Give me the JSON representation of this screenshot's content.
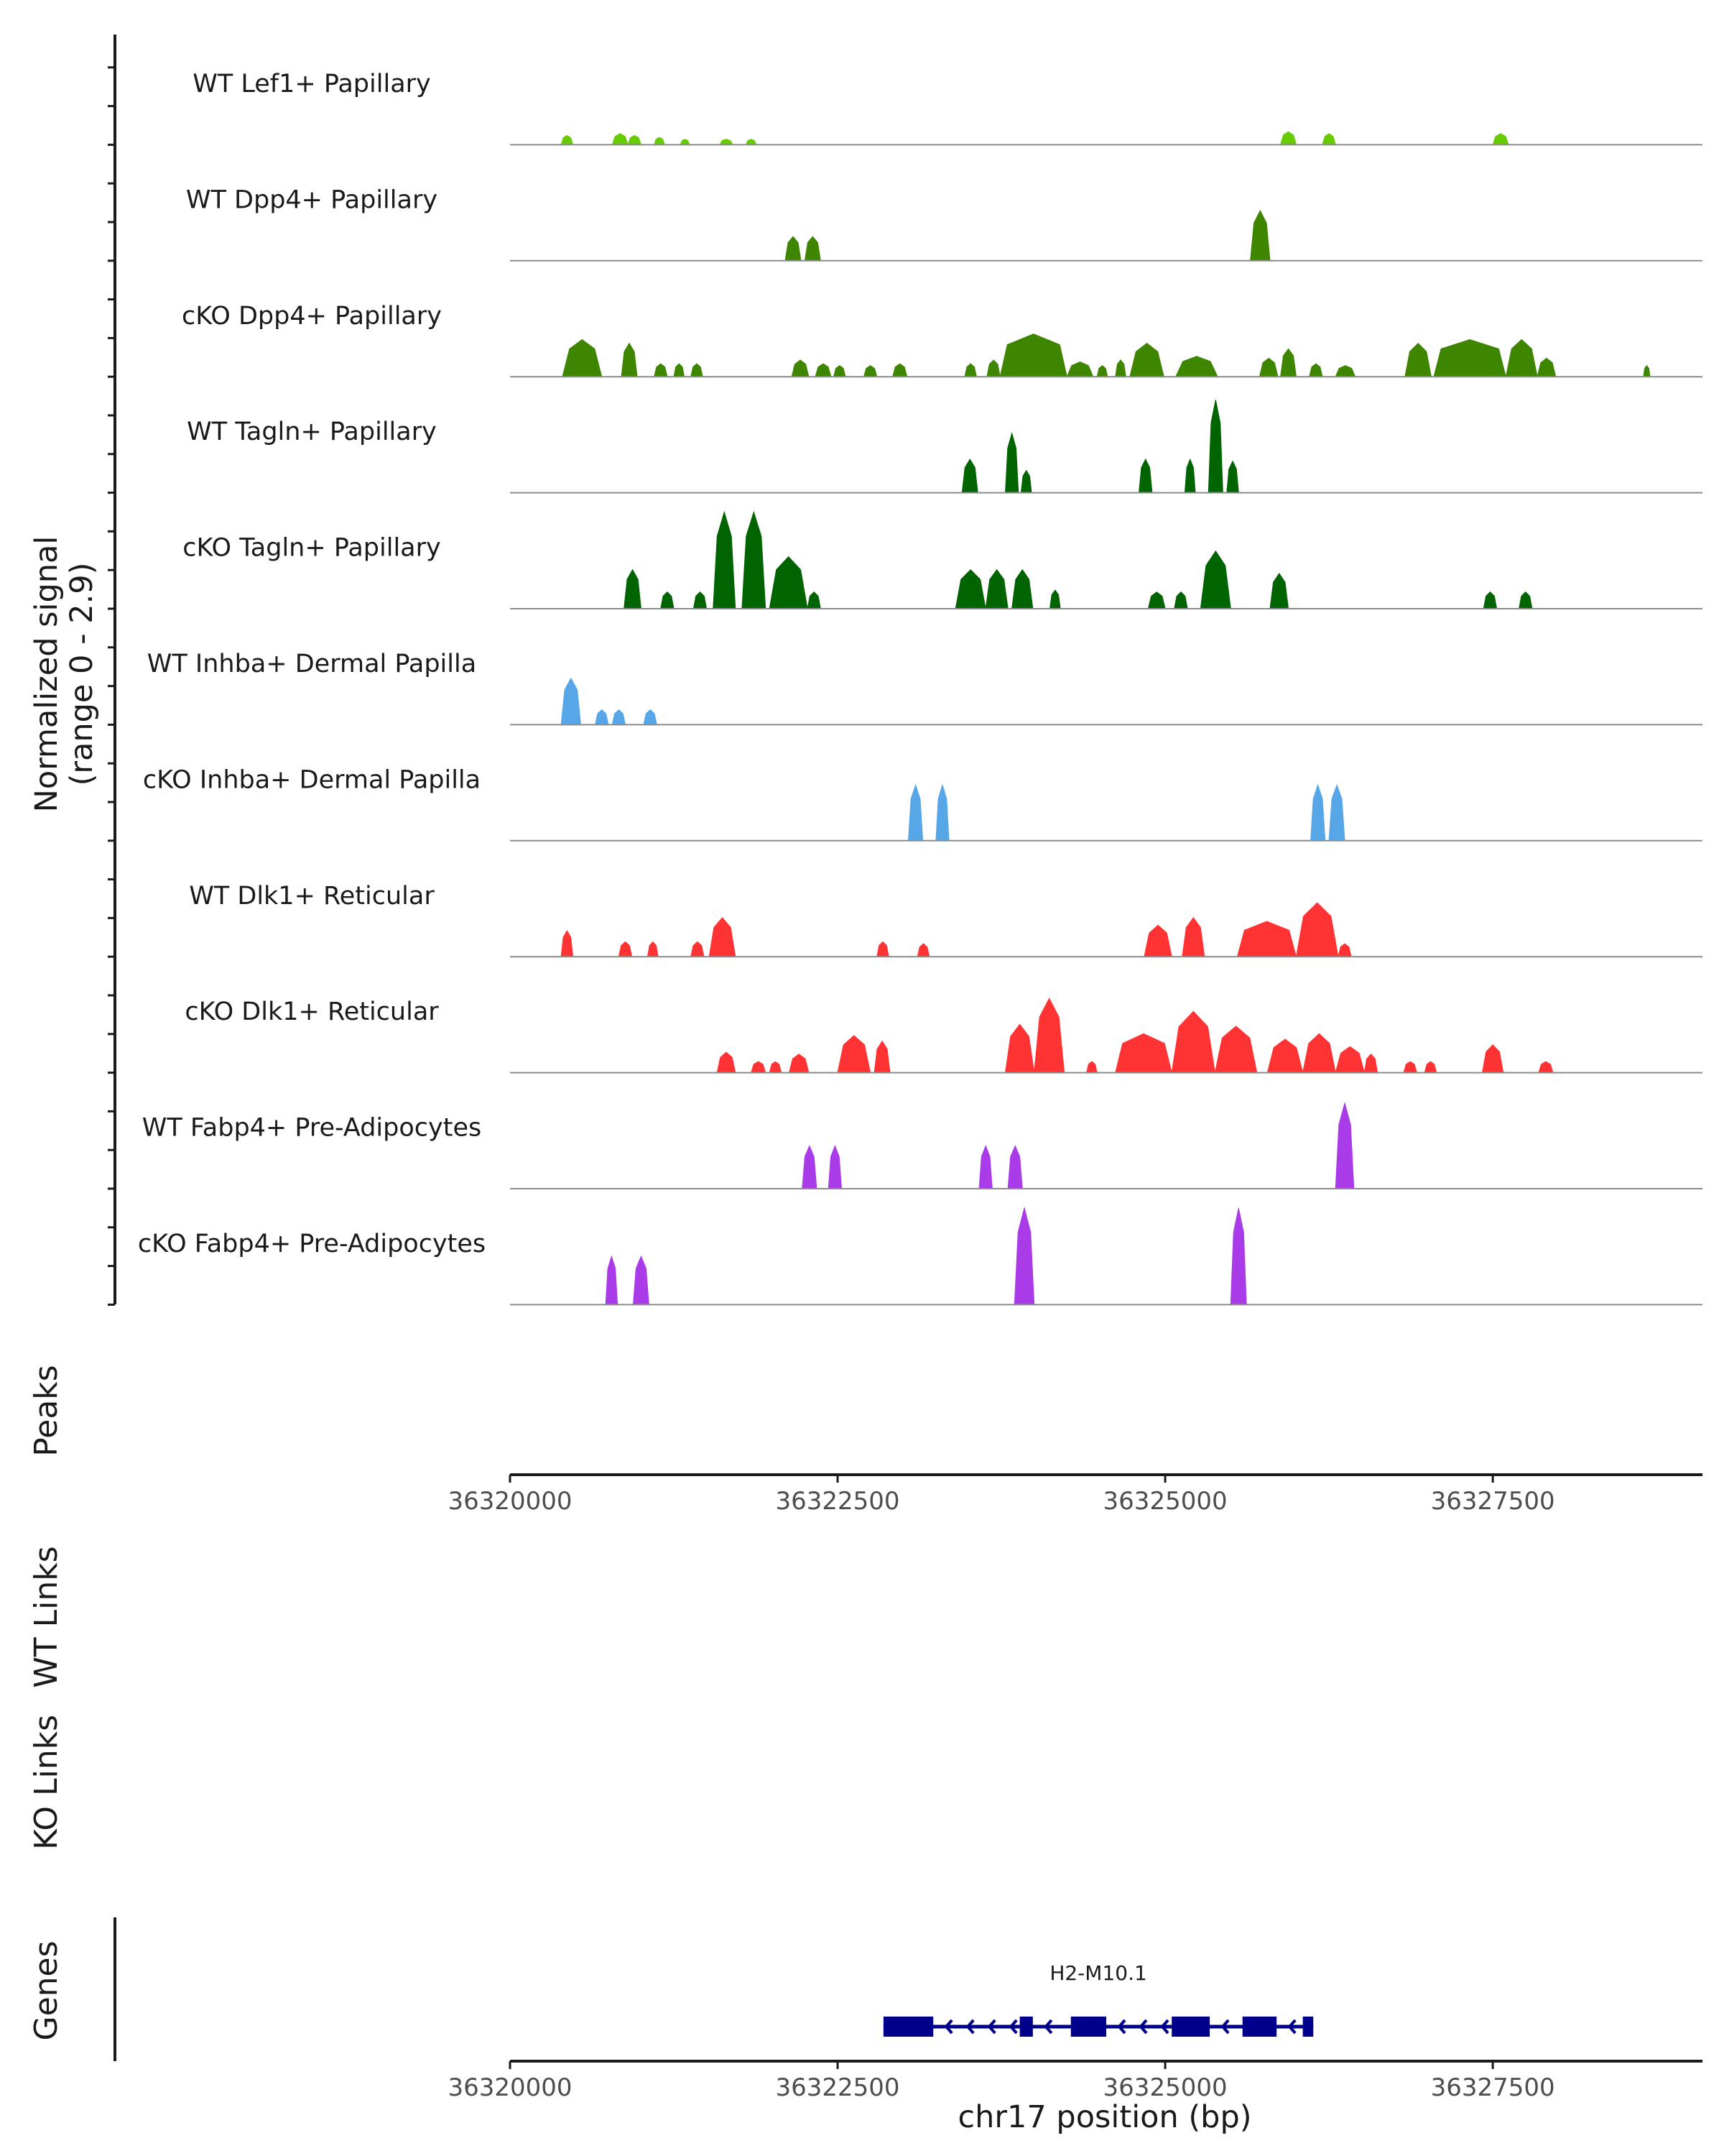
{
  "chart_data": {
    "type": "area",
    "title": "",
    "ylabel": "Normalized signal",
    "ylabel_range": "(range 0 - 2.9)",
    "ylim": [
      0,
      2.9
    ],
    "xlabel": "chr17 position (bp)",
    "chromosome": "chr17",
    "xlim": [
      36320000,
      36329100
    ],
    "x_ticks": [
      36320000,
      36322500,
      36325000,
      36327500
    ],
    "x_tick_labels": [
      "36320000",
      "36322500",
      "36325000",
      "36327500"
    ],
    "series": [
      {
        "name": "WT Lef1+ Papillary",
        "color": "#66CC00",
        "peaks": [
          [
            36320390,
            36320480,
            0.25
          ],
          [
            36320780,
            36320900,
            0.3
          ],
          [
            36320900,
            36321000,
            0.25
          ],
          [
            36321100,
            36321180,
            0.2
          ],
          [
            36321300,
            36321370,
            0.15
          ],
          [
            36321600,
            36321700,
            0.15
          ],
          [
            36321800,
            36321880,
            0.15
          ],
          [
            36325880,
            36326000,
            0.35
          ],
          [
            36326200,
            36326300,
            0.3
          ],
          [
            36327500,
            36327620,
            0.3
          ]
        ]
      },
      {
        "name": "WT Dpp4+ Papillary",
        "color": "#3E8500",
        "peaks": [
          [
            36322100,
            36322220,
            0.65
          ],
          [
            36322250,
            36322370,
            0.65
          ],
          [
            36325650,
            36325800,
            1.35
          ]
        ]
      },
      {
        "name": "cKO Dpp4+ Papillary",
        "color": "#3E8500",
        "peaks": [
          [
            36320400,
            36320700,
            1.0
          ],
          [
            36320850,
            36320970,
            0.9
          ],
          [
            36321100,
            36321200,
            0.35
          ],
          [
            36321250,
            36321330,
            0.35
          ],
          [
            36321380,
            36321470,
            0.35
          ],
          [
            36322150,
            36322280,
            0.45
          ],
          [
            36322330,
            36322450,
            0.35
          ],
          [
            36322470,
            36322560,
            0.3
          ],
          [
            36322700,
            36322800,
            0.3
          ],
          [
            36322920,
            36323030,
            0.35
          ],
          [
            36323470,
            36323560,
            0.35
          ],
          [
            36323640,
            36323740,
            0.45
          ],
          [
            36323740,
            36324250,
            1.15
          ],
          [
            36324250,
            36324450,
            0.4
          ],
          [
            36324480,
            36324560,
            0.3
          ],
          [
            36324620,
            36324700,
            0.45
          ],
          [
            36324730,
            36324990,
            0.9
          ],
          [
            36325080,
            36325400,
            0.55
          ],
          [
            36325720,
            36325860,
            0.5
          ],
          [
            36325880,
            36326000,
            0.75
          ],
          [
            36326100,
            36326200,
            0.35
          ],
          [
            36326300,
            36326450,
            0.3
          ],
          [
            36326830,
            36327030,
            0.9
          ],
          [
            36327050,
            36327600,
            1.0
          ],
          [
            36327600,
            36327840,
            1.0
          ],
          [
            36327840,
            36327980,
            0.5
          ],
          [
            36328650,
            36328700,
            0.3
          ]
        ]
      },
      {
        "name": "WT Tagln+ Papillary",
        "color": "#006400",
        "peaks": [
          [
            36323450,
            36323570,
            0.9
          ],
          [
            36323780,
            36323880,
            1.6
          ],
          [
            36323900,
            36323980,
            0.6
          ],
          [
            36324800,
            36324900,
            0.9
          ],
          [
            36325150,
            36325230,
            0.9
          ],
          [
            36325330,
            36325440,
            2.5
          ],
          [
            36325470,
            36325560,
            0.85
          ]
        ]
      },
      {
        "name": "cKO Tagln+ Papillary",
        "color": "#006400",
        "peaks": [
          [
            36320870,
            36321000,
            1.05
          ],
          [
            36321150,
            36321250,
            0.45
          ],
          [
            36321400,
            36321500,
            0.45
          ],
          [
            36321550,
            36321720,
            2.6
          ],
          [
            36321770,
            36321950,
            2.6
          ],
          [
            36321980,
            36322270,
            1.4
          ],
          [
            36322270,
            36322370,
            0.45
          ],
          [
            36323400,
            36323630,
            1.05
          ],
          [
            36323630,
            36323800,
            1.05
          ],
          [
            36323830,
            36323990,
            1.05
          ],
          [
            36324120,
            36324200,
            0.5
          ],
          [
            36324870,
            36325000,
            0.45
          ],
          [
            36325070,
            36325170,
            0.45
          ],
          [
            36325270,
            36325500,
            1.55
          ],
          [
            36325800,
            36325940,
            0.95
          ],
          [
            36327430,
            36327530,
            0.45
          ],
          [
            36327700,
            36327800,
            0.45
          ]
        ]
      },
      {
        "name": "WT Inhba+ Dermal Papilla",
        "color": "#56A6E8",
        "peaks": [
          [
            36320390,
            36320540,
            1.25
          ],
          [
            36320650,
            36320750,
            0.4
          ],
          [
            36320780,
            36320880,
            0.4
          ],
          [
            36321020,
            36321120,
            0.4
          ]
        ]
      },
      {
        "name": "cKO Inhba+ Dermal Papilla",
        "color": "#56A6E8",
        "peaks": [
          [
            36323040,
            36323150,
            1.5
          ],
          [
            36323250,
            36323350,
            1.5
          ],
          [
            36326110,
            36326220,
            1.5
          ],
          [
            36326250,
            36326370,
            1.5
          ]
        ]
      },
      {
        "name": "WT Dlk1+ Reticular",
        "color": "#FF3333",
        "peaks": [
          [
            36320390,
            36320480,
            0.7
          ],
          [
            36320830,
            36320930,
            0.4
          ],
          [
            36321050,
            36321130,
            0.4
          ],
          [
            36321380,
            36321480,
            0.4
          ],
          [
            36321520,
            36321720,
            1.05
          ],
          [
            36322800,
            36322890,
            0.4
          ],
          [
            36323110,
            36323200,
            0.35
          ],
          [
            36324840,
            36325050,
            0.85
          ],
          [
            36325130,
            36325300,
            1.05
          ],
          [
            36325550,
            36326000,
            0.95
          ],
          [
            36326000,
            36326320,
            1.45
          ],
          [
            36326320,
            36326420,
            0.35
          ]
        ]
      },
      {
        "name": "cKO Dlk1+ Reticular",
        "color": "#FF3333",
        "peaks": [
          [
            36321580,
            36321720,
            0.55
          ],
          [
            36321840,
            36321950,
            0.3
          ],
          [
            36321980,
            36322070,
            0.3
          ],
          [
            36322130,
            36322280,
            0.5
          ],
          [
            36322500,
            36322750,
            1.0
          ],
          [
            36322780,
            36322900,
            0.85
          ],
          [
            36323780,
            36324000,
            1.3
          ],
          [
            36324000,
            36324230,
            2.0
          ],
          [
            36324400,
            36324480,
            0.3
          ],
          [
            36324620,
            36325050,
            1.05
          ],
          [
            36325050,
            36325380,
            1.65
          ],
          [
            36325380,
            36325700,
            1.25
          ],
          [
            36325780,
            36326050,
            0.9
          ],
          [
            36326050,
            36326300,
            1.05
          ],
          [
            36326300,
            36326520,
            0.7
          ],
          [
            36326520,
            36326620,
            0.5
          ],
          [
            36326820,
            36326920,
            0.3
          ],
          [
            36326980,
            36327070,
            0.3
          ],
          [
            36327420,
            36327580,
            0.75
          ],
          [
            36327850,
            36327960,
            0.3
          ]
        ]
      },
      {
        "name": "WT Fabp4+ Pre-Adipocytes",
        "color": "#A93BE8",
        "peaks": [
          [
            36322230,
            36322340,
            1.15
          ],
          [
            36322430,
            36322530,
            1.15
          ],
          [
            36323580,
            36323680,
            1.15
          ],
          [
            36323800,
            36323910,
            1.15
          ],
          [
            36326300,
            36326440,
            2.3
          ]
        ]
      },
      {
        "name": "cKO Fabp4+ Pre-Adipocytes",
        "color": "#A93BE8",
        "peaks": [
          [
            36320730,
            36320820,
            1.3
          ],
          [
            36320940,
            36321060,
            1.3
          ],
          [
            36323850,
            36324000,
            2.6
          ],
          [
            36325500,
            36325620,
            2.6
          ]
        ]
      }
    ],
    "extra_tracks": [
      "Peaks",
      "WT Links",
      "KO Links",
      "Genes"
    ],
    "genes": [
      {
        "name": "H2-M10.1",
        "start": 36322850,
        "end": 36326130,
        "strand": "-",
        "color": "#00008B",
        "exons": [
          [
            36322850,
            36323230
          ],
          [
            36323890,
            36323990
          ],
          [
            36324280,
            36324550
          ],
          [
            36325050,
            36325340
          ],
          [
            36325590,
            36325850
          ],
          [
            36326050,
            36326130
          ]
        ]
      }
    ]
  }
}
